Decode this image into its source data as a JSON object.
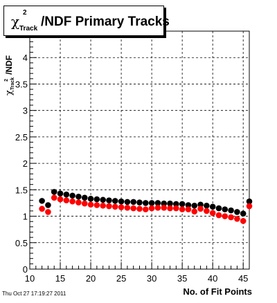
{
  "title": {
    "symbol": "χ",
    "superscript": "2",
    "subscript": "Track",
    "text": "/NDF Primary Tracks"
  },
  "timestamp": "Thu Oct 27 17:19:27 2011",
  "chart_data": {
    "type": "scatter",
    "title": "χ²Track/NDF Primary Tracks",
    "xlabel": "No. of Fit Points",
    "ylabel": {
      "symbol": "χ",
      "sup": "2",
      "sub": "Track",
      "text": "/NDF"
    },
    "xlim": [
      10,
      46
    ],
    "ylim": [
      0,
      4.5
    ],
    "xticks": [
      10,
      15,
      20,
      25,
      30,
      35,
      40,
      45
    ],
    "yticks": [
      0,
      0.5,
      1,
      1.5,
      2,
      2.5,
      3,
      3.5,
      4
    ],
    "yticklabels": [
      "0",
      "0.5",
      "1",
      "1.5",
      "2",
      "2.5",
      "3",
      "3.5",
      "4"
    ],
    "grid": true,
    "series": [
      {
        "color": "#000000",
        "x": [
          12,
          13,
          14,
          15,
          16,
          17,
          18,
          19,
          20,
          21,
          22,
          23,
          24,
          25,
          26,
          27,
          28,
          29,
          30,
          31,
          32,
          33,
          34,
          35,
          36,
          37,
          38,
          39,
          40,
          41,
          42,
          43,
          44,
          45,
          46
        ],
        "y": [
          1.29,
          1.21,
          1.46,
          1.43,
          1.41,
          1.39,
          1.37,
          1.35,
          1.33,
          1.32,
          1.31,
          1.3,
          1.29,
          1.28,
          1.27,
          1.27,
          1.26,
          1.25,
          1.25,
          1.25,
          1.24,
          1.24,
          1.23,
          1.23,
          1.21,
          1.2,
          1.22,
          1.2,
          1.18,
          1.15,
          1.13,
          1.11,
          1.08,
          1.05,
          1.28
        ]
      },
      {
        "color": "#ff0000",
        "x": [
          12,
          13,
          14,
          15,
          16,
          17,
          18,
          19,
          20,
          21,
          22,
          23,
          24,
          25,
          26,
          27,
          28,
          29,
          30,
          31,
          32,
          33,
          34,
          35,
          36,
          37,
          38,
          39,
          40,
          41,
          42,
          43,
          44,
          45,
          46
        ],
        "y": [
          1.14,
          1.08,
          1.35,
          1.32,
          1.3,
          1.28,
          1.26,
          1.24,
          1.22,
          1.21,
          1.2,
          1.19,
          1.18,
          1.17,
          1.16,
          1.15,
          1.14,
          1.13,
          1.15,
          1.16,
          1.16,
          1.15,
          1.15,
          1.13,
          1.13,
          1.09,
          1.14,
          1.1,
          1.06,
          1.02,
          1.0,
          0.98,
          0.95,
          0.91,
          1.19
        ]
      }
    ]
  }
}
